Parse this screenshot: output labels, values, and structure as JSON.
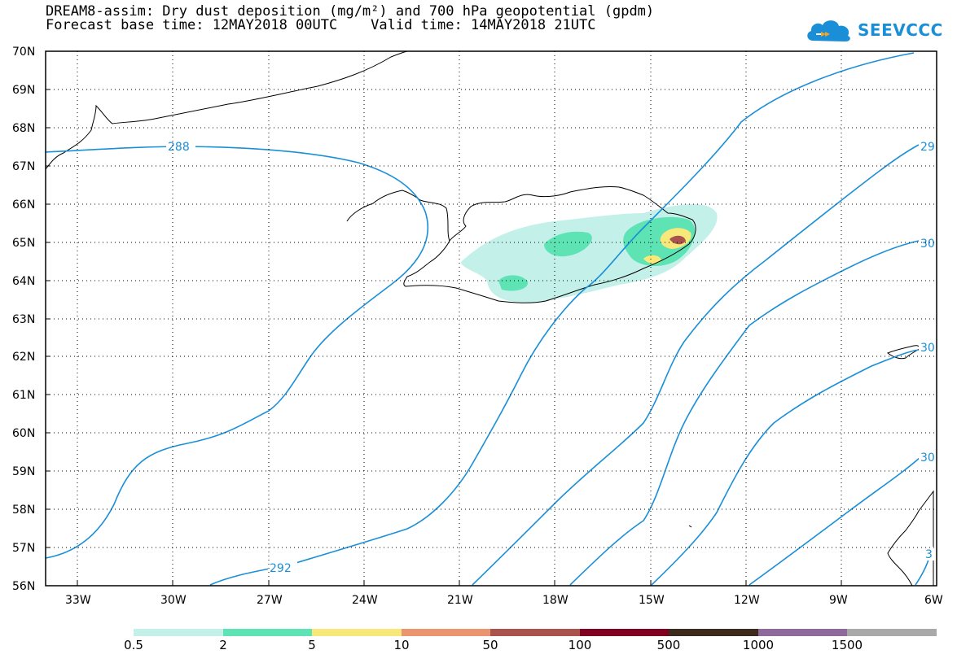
{
  "header": {
    "title_line1": "DREAM8-assim: Dry dust deposition (mg/m²) and 700 hPa geopotential (gpdm)",
    "title_line2": "Forecast base time: 12MAY2018 00UTC    Valid time: 14MAY2018 21UTC"
  },
  "logo": {
    "text": "SEEVCCC",
    "color": "#1a8fd8"
  },
  "map": {
    "lat_labels": [
      "70N",
      "69N",
      "68N",
      "67N",
      "66N",
      "65N",
      "64N",
      "63N",
      "62N",
      "61N",
      "60N",
      "59N",
      "58N",
      "57N",
      "56N"
    ],
    "lon_labels": [
      "33W",
      "30W",
      "27W",
      "24W",
      "21W",
      "18W",
      "15W",
      "12W",
      "9W",
      "6W"
    ],
    "contour_labels": [
      "288",
      "292",
      "29",
      "30",
      "30",
      "30",
      "3"
    ],
    "contour_color": "#1a8fd8"
  },
  "legend": {
    "labels": [
      "0.5",
      "2",
      "5",
      "10",
      "50",
      "100",
      "500",
      "1000",
      "1500"
    ],
    "colors": [
      "#c3f0e8",
      "#5ee3b5",
      "#f8e87a",
      "#eb9470",
      "#a8544c",
      "#800020",
      "#3c2a1c",
      "#8e6a9c",
      "#a9a9a9"
    ]
  }
}
